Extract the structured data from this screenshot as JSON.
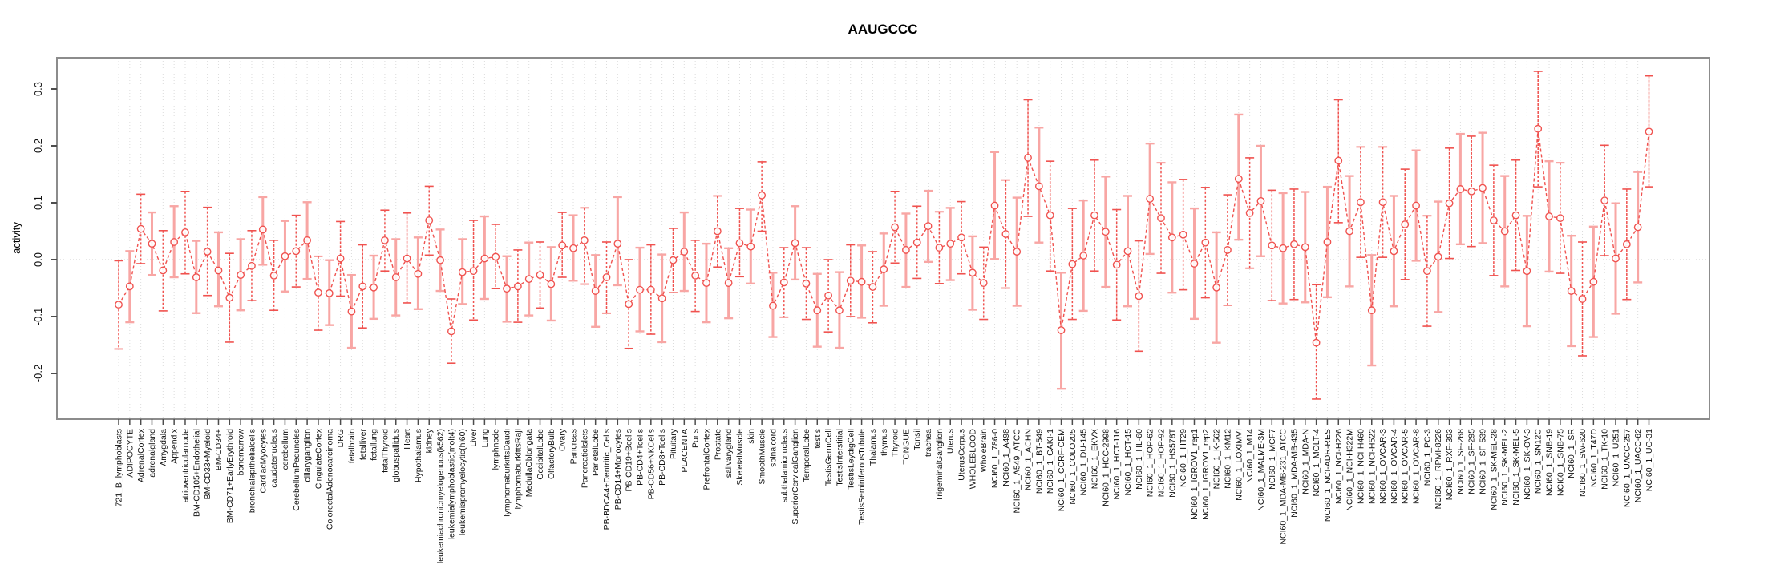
{
  "title": "AAUGCCC",
  "colors": {
    "point": "#f0524f",
    "line": "#f0524f",
    "bar_strong": "#f0524f",
    "bar_light": "#f8a6a4",
    "frame": "#8c8c8c",
    "grid": "#dcdcdc",
    "zero_line": "#cccccc",
    "tick": "#4d4d4d",
    "text": "#111111",
    "background": "#ffffff"
  },
  "chart_data": {
    "type": "line",
    "subtype": "points-with-error-bars",
    "title": "AAUGCCC",
    "xlabel": "",
    "ylabel": "activity",
    "ylim": [
      -0.28,
      0.36
    ],
    "yticks": [
      -0.2,
      -0.1,
      0.0,
      0.1,
      0.2,
      0.3
    ],
    "grid": "vertical-dotted",
    "legend": "none",
    "marker": "open-circle",
    "line_style": "dashed",
    "categories": [
      "721_B_lymphoblasts",
      "ADIPOCYTE",
      "AdrenalCortex",
      "adrenalgland",
      "Amygdala",
      "Appendix",
      "atrioventricularnode",
      "BM-CD105+Endothelial",
      "BM-CD33+Myeloid",
      "BM-CD34+",
      "BM-CD71+EarlyErythroid",
      "bonemarrow",
      "bronchialepithelialcells",
      "CardiacMyocytes",
      "caudatenucleus",
      "cerebellum",
      "CerebellumPeduncles",
      "ciliaryganglion",
      "CingulateCortex",
      "ColorectalAdenocarcinoma",
      "DRG",
      "fetalbrain",
      "fetalliver",
      "fetallung",
      "fetalThyroid",
      "globuspallidus",
      "Heart",
      "Hypothalamus",
      "kidney",
      "leukemiachronicmyelogenous(k562)",
      "leukemialymphoblastic(molt4)",
      "leukemiapromyelocytic(hl60)",
      "Liver",
      "Lung",
      "lymphnode",
      "lymphomaburkittsDaudi",
      "lymphomaburkittsRaji",
      "MedullaOblongata",
      "OccipitalLobe",
      "OlfactoryBulb",
      "Ovary",
      "Pancreas",
      "PancreaticIslets",
      "ParietalLobe",
      "PB-BDCA4+Dentritic_Cells",
      "PB-CD14+Monocytes",
      "PB-CD19+Bcells",
      "PB-CD4+Tcells",
      "PB-CD56+NKCells",
      "PB-CD8+Tcells",
      "Pituitary",
      "PLACENTA",
      "Pons",
      "PrefrontalCortex",
      "Prostate",
      "salivarygland",
      "SkeletalMuscle",
      "skin",
      "SmoothMuscle",
      "spinalcord",
      "subthalamicnucleus",
      "SuperiorCervicalGanglion",
      "TemporalLobe",
      "testis",
      "TestisGermCell",
      "TestisInterstitial",
      "TestisLeydigCell",
      "TestisSeminiferousTubule",
      "Thalamus",
      "thymus",
      "Thyroid",
      "TONGUE",
      "Tonsil",
      "trachea",
      "TrigeminalGanglion",
      "Uterus",
      "UterusCorpus",
      "WHOLEBLOOD",
      "WholeBrain",
      "NCI60_1_786-0",
      "NCI60_1_A498",
      "NCI60_1_A549_ATCC",
      "NCI60_1_ACHN",
      "NCI60_1_BT-549",
      "NCI60_1_CAKI-1",
      "NCI60_1_CCRF-CEM",
      "NCI60_1_COLO205",
      "NCI60_1_DU-145",
      "NCI60_1_EKVX",
      "NCI60_1_HCC-2998",
      "NCI60_1_HCT-116",
      "NCI60_1_HCT-15",
      "NCI60_1_HL-60",
      "NCI60_1_HOP-62",
      "NCI60_1_HOP-92",
      "NCI60_1_HS578T",
      "NCI60_1_HT29",
      "NCI60_1_IGROV1_rep1",
      "NCI60_1_IGROV1_rep2",
      "NCI60_1_K-562",
      "NCI60_1_KM12",
      "NCI60_1_LOXIMVI",
      "NCI60_1_M14",
      "NCI60_1_MALME-3M",
      "NCI60_1_MCF7",
      "NCI60_1_MDA-MB-231_ATCC",
      "NCI60_1_MDA-MB-435",
      "NCI60_1_MDA-N",
      "NCI60_1_MOLT-4",
      "NCI60_1_NCI-ADR-RES",
      "NCI60_1_NCI-H226",
      "NCI60_1_NCI-H322M",
      "NCI60_1_NCI-H460",
      "NCI60_1_NCI-H522",
      "NCI60_1_OVCAR-3",
      "NCI60_1_OVCAR-4",
      "NCI60_1_OVCAR-5",
      "NCI60_1_OVCAR-8",
      "NCI60_1_PC-3",
      "NCI60_1_RPMI-8226",
      "NCI60_1_RXF-393",
      "NCI60_1_SF-268",
      "NCI60_1_SF-295",
      "NCI60_1_SF-539",
      "NCI60_1_SK-MEL-28",
      "NCI60_1_SK-MEL-2",
      "NCI60_1_SK-MEL-5",
      "NCI60_1_SK-OV-3",
      "NCI60_1_SN12C",
      "NCI60_1_SNB-19",
      "NCI60_1_SNB-75",
      "NCI60_1_SR",
      "NCI60_1_SW-620",
      "NCI60_1_T47D",
      "NCI60_1_TK-10",
      "NCI60_1_U251",
      "NCI60_1_UACC-257",
      "NCI60_1_UACC-62",
      "NCI60_1_UO-31"
    ],
    "values": [
      -0.079,
      -0.047,
      0.054,
      0.028,
      -0.019,
      0.031,
      0.048,
      -0.031,
      0.014,
      -0.019,
      -0.067,
      -0.027,
      -0.011,
      0.053,
      -0.028,
      0.006,
      0.015,
      0.034,
      -0.058,
      -0.059,
      0.002,
      -0.091,
      -0.047,
      -0.049,
      0.034,
      -0.031,
      0.002,
      -0.025,
      0.069,
      -0.001,
      -0.126,
      -0.022,
      -0.02,
      0.002,
      0.005,
      -0.051,
      -0.047,
      -0.034,
      -0.027,
      -0.043,
      0.025,
      0.02,
      0.034,
      -0.055,
      -0.031,
      0.028,
      -0.078,
      -0.053,
      -0.053,
      -0.068,
      -0.001,
      0.014,
      -0.028,
      -0.041,
      0.05,
      -0.041,
      0.029,
      0.023,
      0.113,
      -0.081,
      -0.04,
      0.029,
      -0.042,
      -0.089,
      -0.063,
      -0.089,
      -0.037,
      -0.039,
      -0.048,
      -0.017,
      0.057,
      0.017,
      0.03,
      0.059,
      0.021,
      0.028,
      0.039,
      -0.023,
      -0.041,
      0.095,
      0.045,
      0.014,
      0.179,
      0.129,
      0.078,
      -0.124,
      -0.008,
      0.007,
      0.078,
      0.049,
      -0.009,
      0.015,
      -0.064,
      0.107,
      0.073,
      0.039,
      0.044,
      -0.007,
      0.03,
      -0.049,
      0.017,
      0.142,
      0.082,
      0.103,
      0.025,
      0.02,
      0.027,
      0.022,
      -0.146,
      0.031,
      0.174,
      0.05,
      0.101,
      -0.089,
      0.101,
      0.015,
      0.062,
      0.095,
      -0.02,
      0.005,
      0.099,
      0.124,
      0.12,
      0.126,
      0.069,
      0.05,
      0.078,
      -0.02,
      0.23,
      0.076,
      0.073,
      -0.055,
      -0.069,
      -0.039,
      0.104,
      0.002,
      0.027,
      0.057,
      0.225
    ],
    "ci_low": [
      -0.157,
      -0.11,
      -0.007,
      -0.027,
      -0.09,
      -0.031,
      -0.025,
      -0.094,
      -0.063,
      -0.082,
      -0.145,
      -0.089,
      -0.072,
      -0.009,
      -0.089,
      -0.056,
      -0.048,
      -0.034,
      -0.124,
      -0.115,
      -0.064,
      -0.155,
      -0.12,
      -0.104,
      -0.02,
      -0.098,
      -0.076,
      -0.087,
      0.008,
      -0.055,
      -0.182,
      -0.078,
      -0.106,
      -0.069,
      -0.051,
      -0.109,
      -0.11,
      -0.098,
      -0.085,
      -0.107,
      -0.031,
      -0.037,
      -0.043,
      -0.118,
      -0.094,
      -0.045,
      -0.156,
      -0.126,
      -0.131,
      -0.145,
      -0.058,
      -0.055,
      -0.091,
      -0.11,
      -0.013,
      -0.103,
      -0.03,
      -0.042,
      0.05,
      -0.136,
      -0.101,
      -0.035,
      -0.105,
      -0.153,
      -0.127,
      -0.155,
      -0.1,
      -0.102,
      -0.111,
      -0.081,
      -0.006,
      -0.048,
      -0.033,
      -0.004,
      -0.042,
      -0.036,
      -0.025,
      -0.088,
      -0.105,
      0.001,
      -0.05,
      -0.081,
      0.076,
      0.03,
      -0.02,
      -0.227,
      -0.105,
      -0.09,
      -0.02,
      -0.048,
      -0.106,
      -0.082,
      -0.161,
      0.01,
      -0.024,
      -0.058,
      -0.053,
      -0.104,
      -0.067,
      -0.146,
      -0.08,
      0.035,
      -0.015,
      0.006,
      -0.072,
      -0.077,
      -0.07,
      -0.075,
      -0.245,
      -0.066,
      0.065,
      -0.047,
      0.004,
      -0.186,
      0.004,
      -0.082,
      -0.035,
      -0.002,
      -0.117,
      -0.092,
      0.002,
      0.027,
      0.023,
      0.029,
      -0.028,
      -0.047,
      -0.019,
      -0.117,
      0.128,
      -0.021,
      -0.024,
      -0.152,
      -0.169,
      -0.136,
      0.007,
      -0.095,
      -0.07,
      -0.04,
      0.128
    ],
    "ci_high": [
      -0.002,
      0.015,
      0.115,
      0.083,
      0.051,
      0.094,
      0.12,
      0.033,
      0.092,
      0.048,
      0.011,
      0.036,
      0.051,
      0.11,
      0.034,
      0.068,
      0.078,
      0.101,
      0.006,
      -0.001,
      0.067,
      -0.027,
      0.026,
      0.007,
      0.087,
      0.036,
      0.082,
      0.039,
      0.129,
      0.053,
      -0.069,
      0.036,
      0.069,
      0.076,
      0.062,
      0.006,
      0.017,
      0.03,
      0.031,
      0.022,
      0.083,
      0.078,
      0.091,
      0.008,
      0.031,
      0.11,
      0.0,
      0.021,
      0.026,
      0.009,
      0.055,
      0.083,
      0.034,
      0.028,
      0.112,
      0.02,
      0.09,
      0.088,
      0.172,
      -0.023,
      0.021,
      0.094,
      0.021,
      -0.025,
      0.0,
      -0.022,
      0.026,
      0.025,
      0.014,
      0.046,
      0.12,
      0.081,
      0.094,
      0.121,
      0.084,
      0.091,
      0.102,
      0.041,
      0.022,
      0.189,
      0.14,
      0.109,
      0.281,
      0.232,
      0.173,
      -0.023,
      0.09,
      0.104,
      0.175,
      0.146,
      0.088,
      0.112,
      0.033,
      0.204,
      0.17,
      0.136,
      0.141,
      0.09,
      0.127,
      0.048,
      0.114,
      0.255,
      0.179,
      0.2,
      0.122,
      0.117,
      0.124,
      0.119,
      -0.044,
      0.128,
      0.281,
      0.147,
      0.198,
      0.008,
      0.198,
      0.112,
      0.159,
      0.192,
      0.077,
      0.102,
      0.196,
      0.221,
      0.217,
      0.223,
      0.166,
      0.147,
      0.175,
      0.077,
      0.331,
      0.173,
      0.17,
      0.042,
      0.031,
      0.058,
      0.201,
      0.099,
      0.124,
      0.154,
      0.323
    ]
  }
}
